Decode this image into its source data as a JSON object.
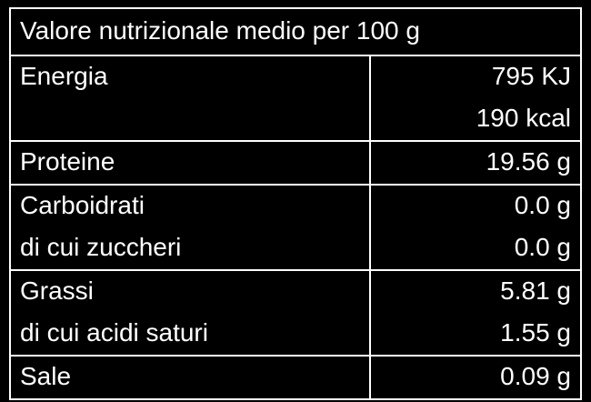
{
  "title": "Valore nutrizionale medio per 100 g",
  "rows": [
    {
      "labels": [
        "Energia"
      ],
      "values": [
        "795 KJ",
        "190 kcal"
      ]
    },
    {
      "labels": [
        "Proteine"
      ],
      "values": [
        "19.56 g"
      ]
    },
    {
      "labels": [
        "Carboidrati",
        "di cui zuccheri"
      ],
      "values": [
        "0.0 g",
        "0.0 g"
      ]
    },
    {
      "labels": [
        "Grassi",
        "di cui acidi saturi"
      ],
      "values": [
        "5.81 g",
        "1.55 g"
      ]
    },
    {
      "labels": [
        "Sale"
      ],
      "values": [
        "0.09 g"
      ]
    }
  ]
}
